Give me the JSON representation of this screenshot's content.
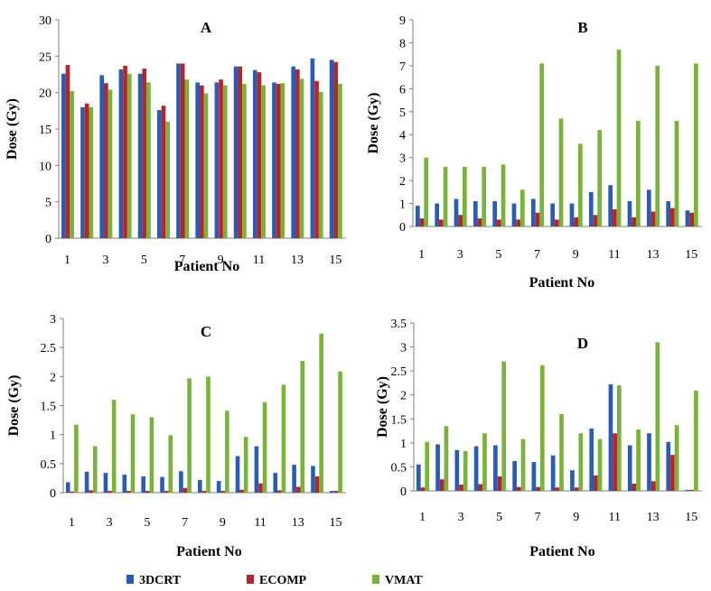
{
  "legend": [
    {
      "name": "3DCRT",
      "color": "#2a5bb5"
    },
    {
      "name": "ECOMP",
      "color": "#b3262a"
    },
    {
      "name": "VMAT",
      "color": "#7ab33a"
    }
  ],
  "chart_data": [
    {
      "type": "bar",
      "title": "A",
      "ylabel": "Dose (Gy)",
      "xlabel": "Patient No",
      "ylim": [
        0,
        30
      ],
      "yticks": [
        "0",
        "5",
        "10",
        "15",
        "20",
        "25",
        "30"
      ],
      "categories": [
        "1",
        "2",
        "3",
        "4",
        "5",
        "6",
        "7",
        "8",
        "9",
        "10",
        "11",
        "12",
        "13",
        "14",
        "15"
      ],
      "xticks_shown": [
        "1",
        "3",
        "5",
        "7",
        "9",
        "11",
        "13",
        "15"
      ],
      "series": [
        {
          "name": "3DCRT",
          "values": [
            22.6,
            18.0,
            22.4,
            23.2,
            22.6,
            17.6,
            24.0,
            21.4,
            21.4,
            23.6,
            23.1,
            21.4,
            23.6,
            24.7,
            24.5
          ]
        },
        {
          "name": "ECOMP",
          "values": [
            23.8,
            18.5,
            21.3,
            23.7,
            23.3,
            18.2,
            24.0,
            21.0,
            21.8,
            23.6,
            22.8,
            21.2,
            23.2,
            21.6,
            24.2
          ]
        },
        {
          "name": "VMAT",
          "values": [
            20.2,
            18.0,
            20.4,
            22.6,
            21.4,
            16.0,
            21.8,
            19.9,
            21.0,
            21.2,
            21.0,
            21.3,
            21.9,
            20.1,
            21.2
          ]
        }
      ]
    },
    {
      "type": "bar",
      "title": "B",
      "ylabel": "Dose (Gy)",
      "xlabel": "Patient No",
      "ylim": [
        0,
        9
      ],
      "yticks": [
        "0",
        "1",
        "2",
        "3",
        "4",
        "5",
        "6",
        "7",
        "8",
        "9"
      ],
      "categories": [
        "1",
        "2",
        "3",
        "4",
        "5",
        "6",
        "7",
        "8",
        "9",
        "10",
        "11",
        "12",
        "13",
        "14",
        "15"
      ],
      "xticks_shown": [
        "1",
        "3",
        "5",
        "7",
        "9",
        "11",
        "13",
        "15"
      ],
      "series": [
        {
          "name": "3DCRT",
          "values": [
            0.9,
            1.0,
            1.2,
            1.1,
            1.1,
            1.0,
            1.2,
            1.0,
            1.0,
            1.5,
            1.8,
            1.1,
            1.6,
            1.1,
            0.7
          ]
        },
        {
          "name": "ECOMP",
          "values": [
            0.35,
            0.3,
            0.5,
            0.35,
            0.3,
            0.3,
            0.6,
            0.3,
            0.4,
            0.5,
            0.75,
            0.4,
            0.65,
            0.8,
            0.6
          ]
        },
        {
          "name": "VMAT",
          "values": [
            3.0,
            2.6,
            2.6,
            2.6,
            2.7,
            1.6,
            7.1,
            4.7,
            3.6,
            4.2,
            7.7,
            4.6,
            7.0,
            4.6,
            7.1
          ]
        }
      ]
    },
    {
      "type": "bar",
      "title": "C",
      "ylabel": "Dose (Gy)",
      "xlabel": "Patient No",
      "ylim": [
        0,
        3
      ],
      "yticks": [
        "0",
        "0.5",
        "1",
        "1.5",
        "2",
        "2.5",
        "3"
      ],
      "categories": [
        "1",
        "2",
        "3",
        "4",
        "5",
        "6",
        "7",
        "8",
        "9",
        "10",
        "11",
        "12",
        "13",
        "14",
        "15"
      ],
      "xticks_shown": [
        "1",
        "3",
        "5",
        "7",
        "9",
        "11",
        "13",
        "15"
      ],
      "series": [
        {
          "name": "3DCRT",
          "values": [
            0.18,
            0.36,
            0.34,
            0.31,
            0.28,
            0.27,
            0.37,
            0.22,
            0.2,
            0.63,
            0.8,
            0.34,
            0.48,
            0.46,
            0.03
          ]
        },
        {
          "name": "ECOMP",
          "values": [
            0.02,
            0.04,
            0.03,
            0.03,
            0.03,
            0.03,
            0.08,
            0.03,
            0.03,
            0.05,
            0.16,
            0.04,
            0.1,
            0.28,
            0.03
          ]
        },
        {
          "name": "VMAT",
          "values": [
            1.17,
            0.8,
            1.6,
            1.35,
            1.3,
            0.99,
            1.97,
            2.0,
            1.41,
            0.96,
            1.56,
            1.86,
            2.27,
            2.74,
            2.09
          ]
        }
      ]
    },
    {
      "type": "bar",
      "title": "D",
      "ylabel": "Dose (Gy)",
      "xlabel": "Patient No",
      "ylim": [
        0,
        3.5
      ],
      "yticks": [
        "0",
        "0.5",
        "1",
        "1.5",
        "2",
        "2.5",
        "3",
        "3.5"
      ],
      "categories": [
        "1",
        "2",
        "3",
        "4",
        "5",
        "6",
        "7",
        "8",
        "9",
        "10",
        "11",
        "12",
        "13",
        "14",
        "15"
      ],
      "xticks_shown": [
        "1",
        "3",
        "5",
        "7",
        "9",
        "11",
        "13",
        "15"
      ],
      "series": [
        {
          "name": "3DCRT",
          "values": [
            0.55,
            0.97,
            0.85,
            0.93,
            0.95,
            0.62,
            0.6,
            0.74,
            0.43,
            1.3,
            2.22,
            0.95,
            1.2,
            1.02,
            0.02
          ]
        },
        {
          "name": "ECOMP",
          "values": [
            0.07,
            0.24,
            0.13,
            0.14,
            0.3,
            0.08,
            0.08,
            0.07,
            0.07,
            0.32,
            1.2,
            0.15,
            0.2,
            0.75,
            0.02
          ]
        },
        {
          "name": "VMAT",
          "values": [
            1.02,
            1.35,
            0.83,
            1.2,
            2.7,
            1.08,
            2.62,
            1.6,
            1.2,
            1.08,
            2.2,
            1.28,
            3.1,
            1.37,
            2.09
          ]
        }
      ]
    }
  ]
}
